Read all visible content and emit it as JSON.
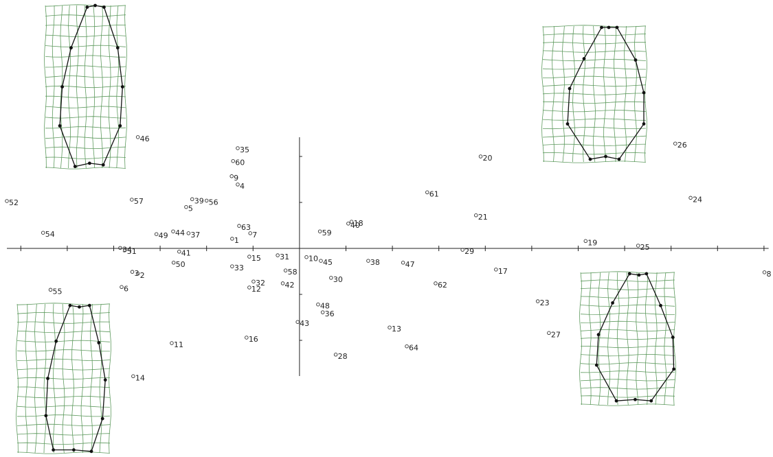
{
  "chart_data": {
    "type": "scatter",
    "labels": [
      "35",
      "60",
      "9",
      "4",
      "52",
      "57",
      "39",
      "56",
      "5",
      "63",
      "54",
      "49",
      "44",
      "37",
      "7",
      "1",
      "34",
      "51",
      "41",
      "15",
      "31",
      "10",
      "45",
      "50",
      "33",
      "58",
      "3",
      "2",
      "6",
      "55",
      "32",
      "12",
      "42",
      "30",
      "48",
      "36",
      "43",
      "11",
      "16",
      "28",
      "13",
      "64",
      "14",
      "38",
      "47",
      "62",
      "29",
      "17",
      "23",
      "27",
      "19",
      "25",
      "8",
      "20",
      "26",
      "24",
      "61",
      "21",
      "59",
      "40",
      "18",
      "46"
    ],
    "x": [
      -1.33,
      -1.43,
      -1.46,
      -1.33,
      -6.3,
      -3.61,
      -2.31,
      -2.0,
      -2.44,
      -1.3,
      -5.52,
      -3.08,
      -2.72,
      -2.39,
      -1.06,
      -1.45,
      -3.86,
      -3.76,
      -2.59,
      -1.08,
      -0.47,
      0.15,
      0.46,
      -2.71,
      -1.45,
      -0.3,
      -3.6,
      -3.48,
      -3.83,
      -5.36,
      -0.99,
      -1.08,
      -0.36,
      0.68,
      0.4,
      0.5,
      -0.04,
      -2.75,
      -1.14,
      0.78,
      1.94,
      2.31,
      -3.58,
      1.48,
      2.23,
      2.93,
      3.51,
      4.23,
      5.13,
      5.37,
      6.16,
      7.29,
      10.01,
      3.9,
      8.09,
      8.42,
      2.75,
      3.8,
      0.44,
      1.05,
      1.12,
      -3.48
    ],
    "y": [
      2.18,
      1.9,
      1.57,
      1.39,
      1.03,
      1.06,
      1.07,
      1.04,
      0.9,
      0.49,
      0.34,
      0.31,
      0.37,
      0.33,
      0.33,
      0.21,
      0.01,
      -0.03,
      -0.07,
      -0.18,
      -0.15,
      -0.19,
      -0.27,
      -0.31,
      -0.39,
      -0.48,
      -0.51,
      -0.55,
      -0.84,
      -0.9,
      -0.72,
      -0.85,
      -0.76,
      -0.64,
      -1.22,
      -1.39,
      -1.6,
      -2.06,
      -1.94,
      -2.31,
      -1.72,
      -2.13,
      -2.78,
      -0.27,
      -0.31,
      -0.76,
      -0.03,
      -0.46,
      -1.15,
      -1.84,
      0.16,
      0.06,
      -0.52,
      2.0,
      2.28,
      1.1,
      1.22,
      0.72,
      0.37,
      0.54,
      0.58,
      2.42
    ],
    "xlim": [
      -6.3,
      10.1
    ],
    "ylim": [
      -4,
      5
    ],
    "xticks": [
      -6,
      -5,
      -4,
      -3,
      -2,
      -1,
      1,
      2,
      3,
      4,
      5,
      6,
      7,
      8,
      9,
      10
    ],
    "yticks": [
      -2,
      -1,
      1,
      2
    ]
  }
}
